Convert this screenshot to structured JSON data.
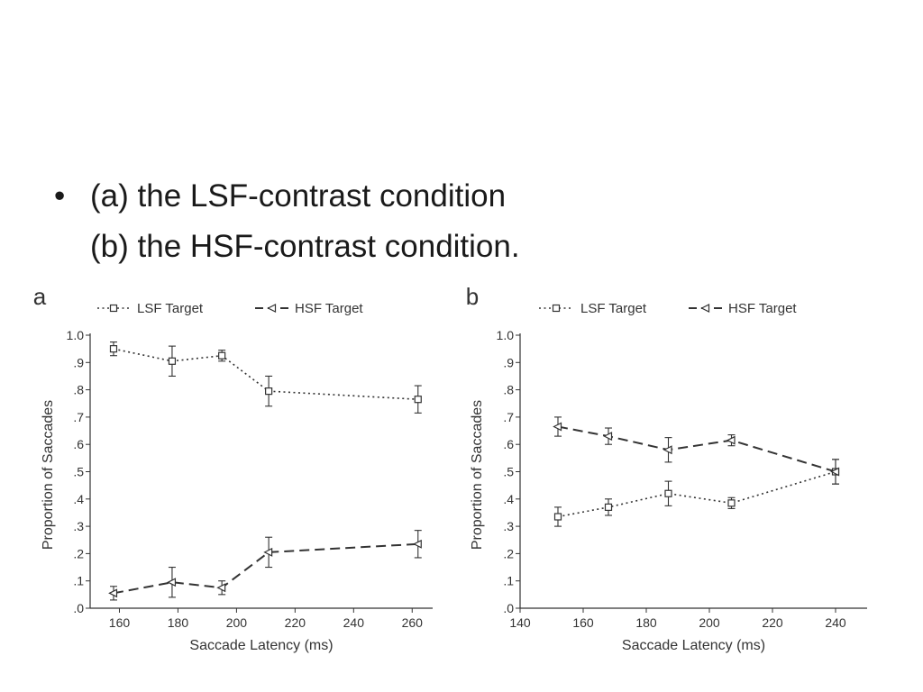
{
  "slide": {
    "bullet_symbol": "•",
    "bullet_line_1": "(a) the LSF-contrast condition",
    "bullet_line_2": "(b) the HSF-contrast condition."
  },
  "chart_data": [
    {
      "type": "line",
      "panel_label": "a",
      "xlabel": "Saccade Latency (ms)",
      "ylabel": "Proportion of Saccades",
      "xlim": [
        150,
        267
      ],
      "ylim": [
        0,
        1.0
      ],
      "xticks": [
        160,
        180,
        200,
        220,
        240,
        260
      ],
      "xtick_labels": [
        "160",
        "180",
        "200",
        "220",
        "240",
        "260"
      ],
      "yticks": [
        0,
        0.1,
        0.2,
        0.3,
        0.4,
        0.5,
        0.6,
        0.7,
        0.8,
        0.9,
        1.0
      ],
      "ytick_labels": [
        ".0",
        ".1",
        ".2",
        ".3",
        ".4",
        ".5",
        ".6",
        ".7",
        ".8",
        ".9",
        "1.0"
      ],
      "legend_position": "top",
      "grid": false,
      "series": [
        {
          "name": "LSF Target",
          "line_style": "dotted",
          "marker": "square",
          "x": [
            158,
            178,
            195,
            211,
            262
          ],
          "y": [
            0.95,
            0.905,
            0.925,
            0.795,
            0.765
          ],
          "err": [
            0.025,
            0.055,
            0.02,
            0.055,
            0.05
          ]
        },
        {
          "name": "HSF Target",
          "line_style": "dashed",
          "marker": "triangle-left",
          "x": [
            158,
            178,
            195,
            211,
            262
          ],
          "y": [
            0.055,
            0.095,
            0.075,
            0.205,
            0.235
          ],
          "err": [
            0.025,
            0.055,
            0.025,
            0.055,
            0.05
          ]
        }
      ]
    },
    {
      "type": "line",
      "panel_label": "b",
      "xlabel": "Saccade Latency (ms)",
      "ylabel": "Proportion of Saccades",
      "xlim": [
        140,
        250
      ],
      "ylim": [
        0,
        1.0
      ],
      "xticks": [
        140,
        160,
        180,
        200,
        220,
        240
      ],
      "xtick_labels": [
        "140",
        "160",
        "180",
        "200",
        "220",
        "240"
      ],
      "yticks": [
        0,
        0.1,
        0.2,
        0.3,
        0.4,
        0.5,
        0.6,
        0.7,
        0.8,
        0.9,
        1.0
      ],
      "ytick_labels": [
        ".0",
        ".1",
        ".2",
        ".3",
        ".4",
        ".5",
        ".6",
        ".7",
        ".8",
        ".9",
        "1.0"
      ],
      "legend_position": "top",
      "grid": false,
      "series": [
        {
          "name": "LSF Target",
          "line_style": "dotted",
          "marker": "square",
          "x": [
            152,
            168,
            187,
            207,
            240
          ],
          "y": [
            0.335,
            0.37,
            0.42,
            0.385,
            0.5
          ],
          "err": [
            0.035,
            0.03,
            0.045,
            0.02,
            0.045
          ]
        },
        {
          "name": "HSF Target",
          "line_style": "dashed",
          "marker": "triangle-left",
          "x": [
            152,
            168,
            187,
            207,
            240
          ],
          "y": [
            0.665,
            0.63,
            0.58,
            0.615,
            0.5
          ],
          "err": [
            0.035,
            0.03,
            0.045,
            0.02,
            0.045
          ]
        }
      ]
    }
  ]
}
